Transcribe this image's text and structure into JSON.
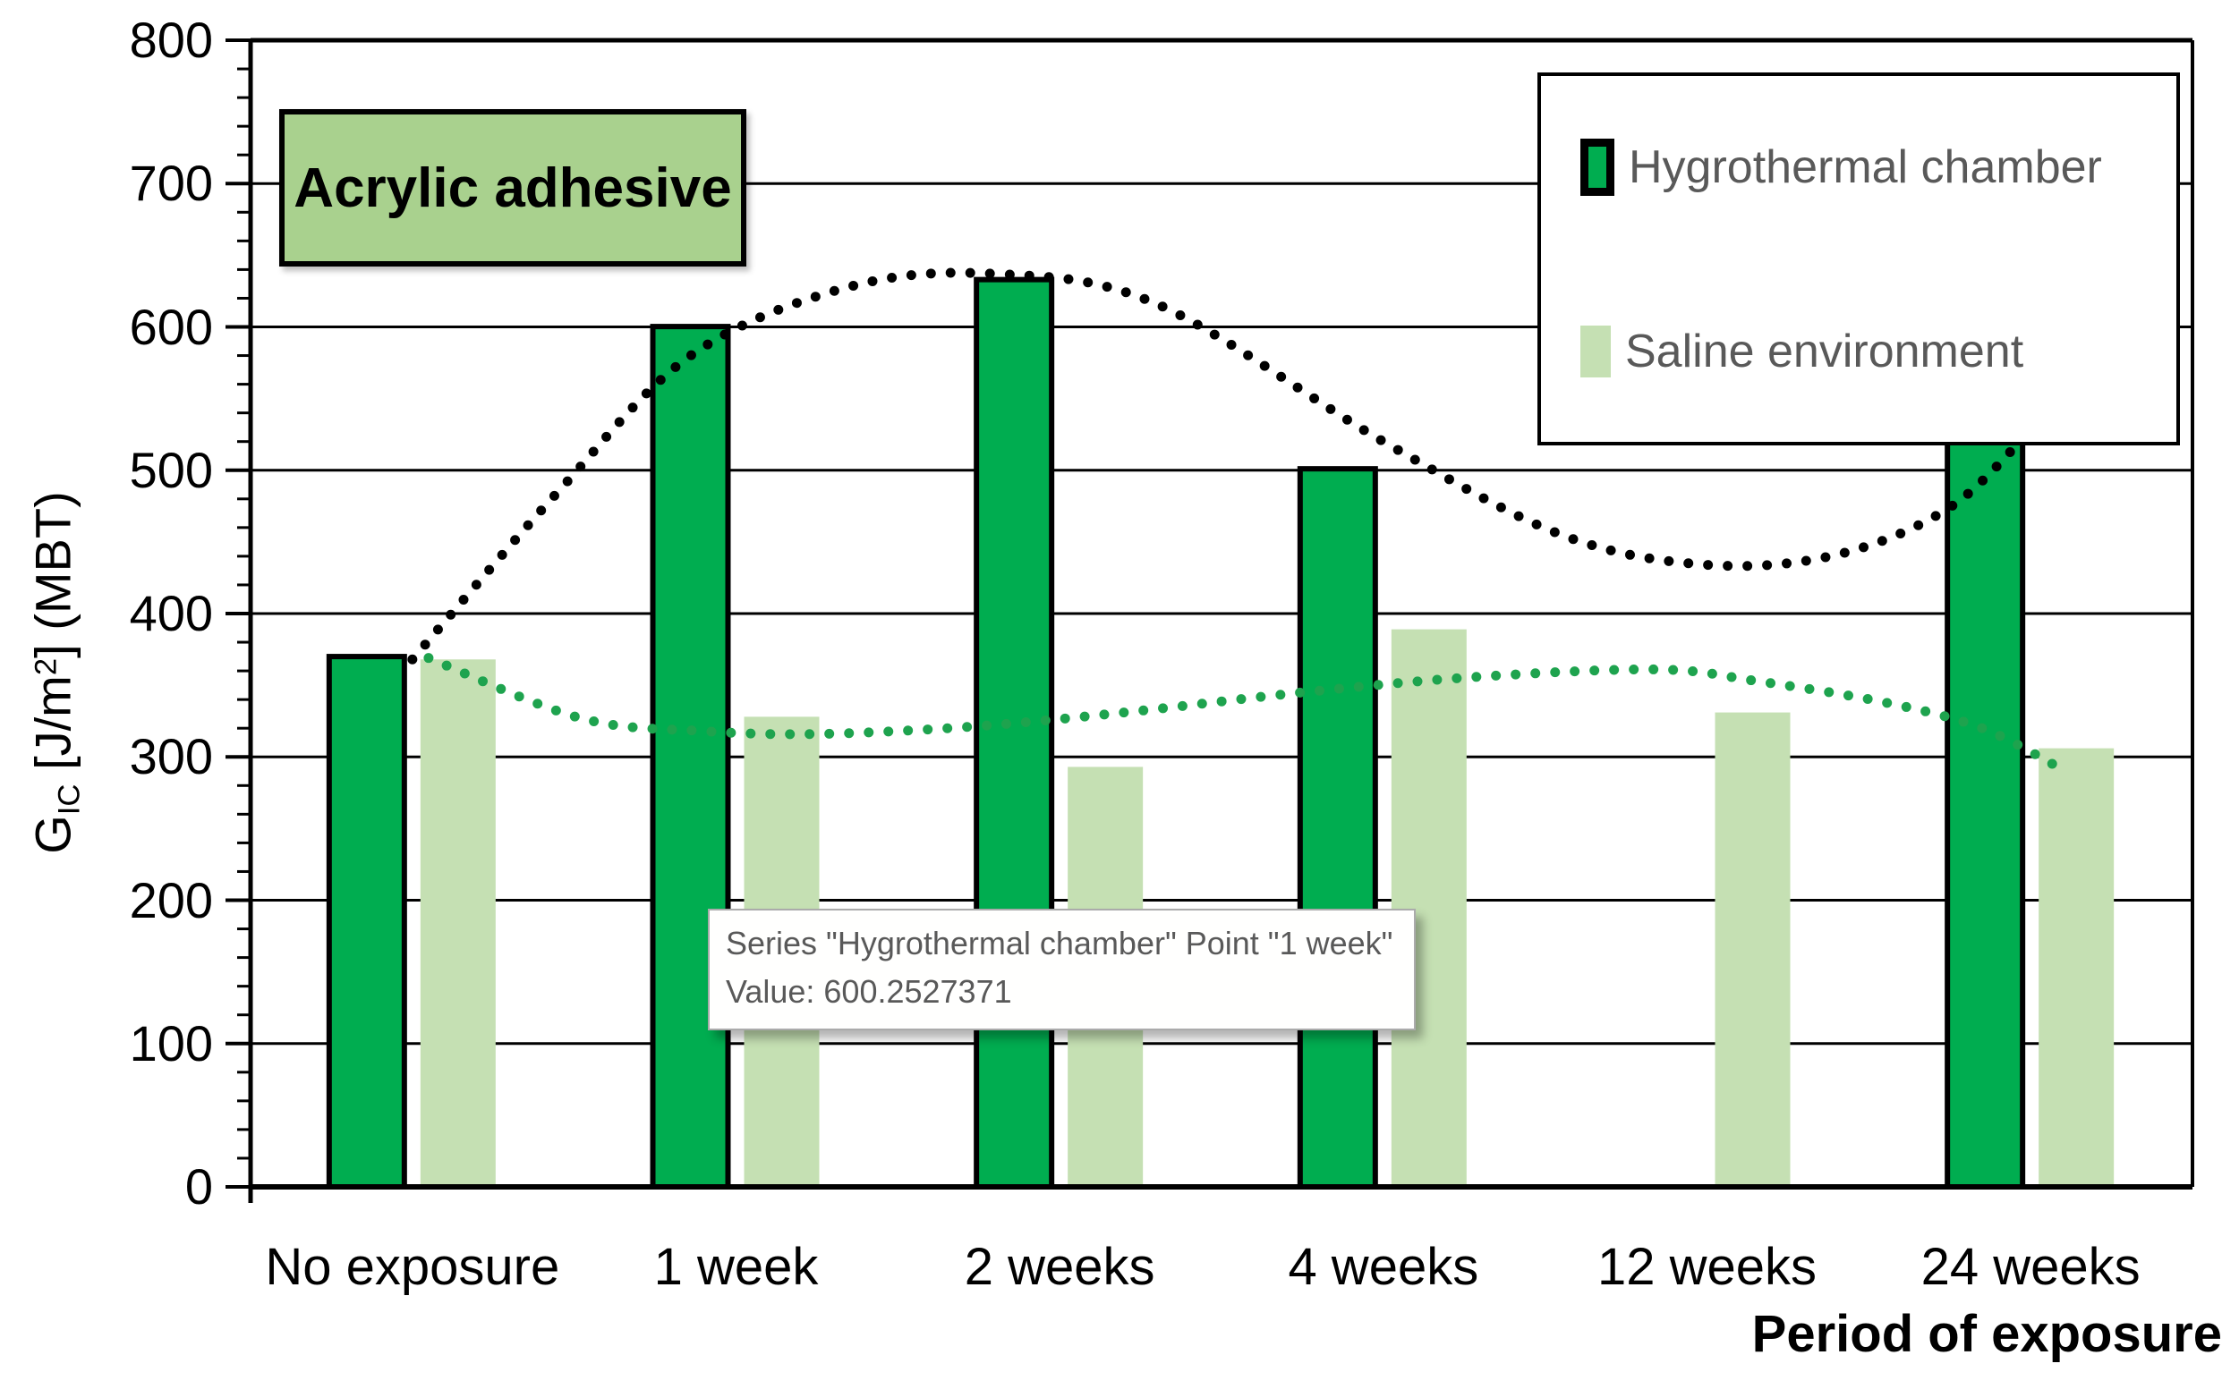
{
  "title_box": {
    "label": "Acrylic adhesive"
  },
  "axes": {
    "x_title": "Period of exposure",
    "y_title": {
      "pre": "G",
      "sub": "IC",
      "mid": " [J/m",
      "sup": "2",
      "post": "] (MBT)"
    }
  },
  "legend": {
    "position": "top-right",
    "items": [
      {
        "label": "Hygrothermal chamber",
        "swatch_color": "#00AD50",
        "swatch_border": "#000000"
      },
      {
        "label": "Saline environment",
        "swatch_color": "#C5E0B3",
        "swatch_border": null
      }
    ]
  },
  "tooltip": {
    "line1": "Series \"Hygrothermal chamber\" Point \"1 week\"",
    "line2": "Value: 600.2527371"
  },
  "chart_data": {
    "type": "bar",
    "title": "Acrylic adhesive",
    "xlabel": "Period of exposure",
    "ylabel": "G_IC [J/m2] (MBT)",
    "ylim": [
      0,
      800
    ],
    "y_ticks": [
      0,
      100,
      200,
      300,
      400,
      500,
      600,
      700,
      800
    ],
    "minor_tick_step": 20,
    "grid": "horizontal",
    "legend_position": "top-right",
    "categories": [
      "No exposure",
      "1 week",
      "2 weeks",
      "4 weeks",
      "12 weeks",
      "24 weeks"
    ],
    "series": [
      {
        "name": "Hygrothermal chamber",
        "color": "#00AD50",
        "outline": "#000000",
        "values": [
          370,
          600.2527371,
          633,
          501,
          null,
          523
        ]
      },
      {
        "name": "Saline environment",
        "color": "#C5E0B3",
        "outline": null,
        "values": [
          368,
          328,
          293,
          389,
          331,
          306
        ]
      }
    ],
    "trendlines": [
      {
        "series": "Hygrothermal chamber",
        "style": "dotted",
        "color": "#000000",
        "points": [
          [
            0.5,
            368
          ],
          [
            0.95,
            485
          ],
          [
            1.36,
            580
          ],
          [
            1.85,
            628
          ],
          [
            2.3,
            637
          ],
          [
            2.8,
            616
          ],
          [
            3.5,
            520
          ],
          [
            4.05,
            455
          ],
          [
            4.5,
            434
          ],
          [
            4.9,
            441
          ],
          [
            5.25,
            474
          ],
          [
            5.5,
            528
          ]
        ]
      },
      {
        "series": "Saline environment",
        "style": "dotted",
        "color": "#1EA34E",
        "points": [
          [
            0.55,
            369
          ],
          [
            1.02,
            327
          ],
          [
            1.4,
            318
          ],
          [
            1.75,
            316
          ],
          [
            2.22,
            321
          ],
          [
            2.7,
            331
          ],
          [
            3.25,
            345
          ],
          [
            3.8,
            356
          ],
          [
            4.35,
            361
          ],
          [
            4.65,
            353
          ],
          [
            5.05,
            338
          ],
          [
            5.35,
            320
          ],
          [
            5.6,
            291
          ]
        ]
      }
    ]
  }
}
